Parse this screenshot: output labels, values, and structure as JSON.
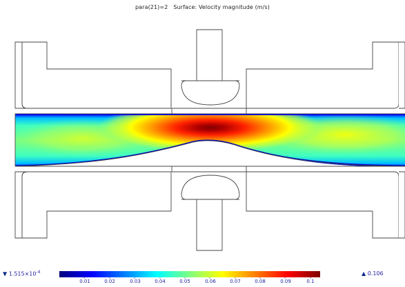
{
  "plot": {
    "parameter": "para(21)=2",
    "surface": "Surface: Velocity magnitude (m/s)"
  },
  "colorbar": {
    "min_mantissa": "1.515×10",
    "min_exponent": "-4",
    "max_label": "0.106",
    "ticks": [
      "0.01",
      "0.02",
      "0.03",
      "0.04",
      "0.05",
      "0.06",
      "0.07",
      "0.08",
      "0.09",
      "0.1"
    ],
    "colormap": [
      "#00007f",
      "#0000ff",
      "#007fff",
      "#00ffff",
      "#7fff7f",
      "#ffff00",
      "#ff7f00",
      "#ff0000",
      "#7f0000"
    ]
  },
  "colors": {
    "outline": "#444444",
    "max_arrow": "#0a2a88"
  },
  "icons": {
    "min_marker": "triangle-down-icon",
    "max_marker": "triangle-up-icon"
  }
}
